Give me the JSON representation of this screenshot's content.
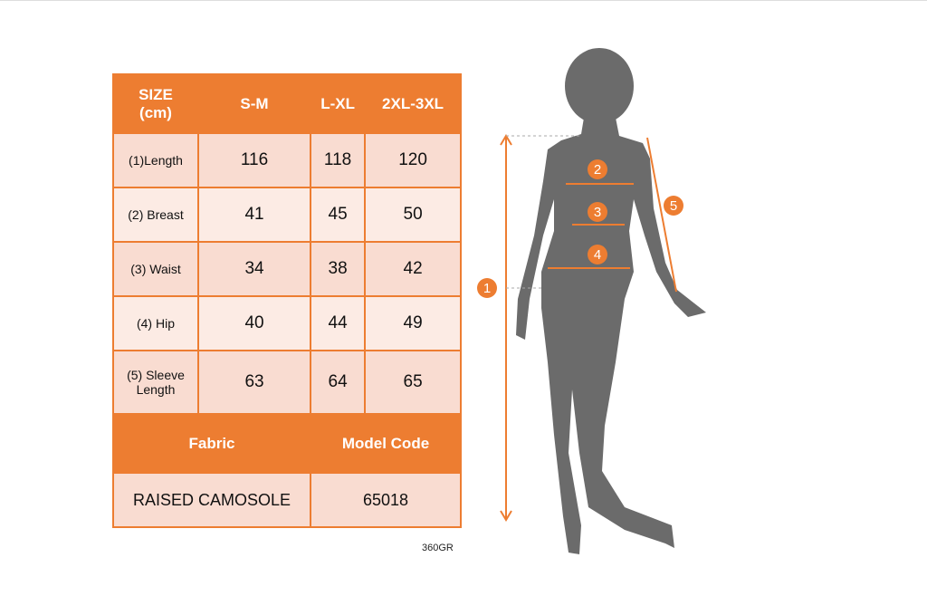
{
  "table": {
    "header": [
      "SIZE\n(cm)",
      "S-M",
      "L-XL",
      "2XL-3XL"
    ],
    "header_size_line1": "SIZE",
    "header_size_line2": "(cm)",
    "rows": [
      {
        "label": "(1)Length",
        "values": [
          "116",
          "118",
          "120"
        ]
      },
      {
        "label": "(2) Breast",
        "values": [
          "41",
          "45",
          "50"
        ]
      },
      {
        "label": "(3) Waist",
        "values": [
          "34",
          "38",
          "42"
        ]
      },
      {
        "label": "(4) Hip",
        "values": [
          "40",
          "44",
          "49"
        ]
      },
      {
        "label": "(5) Sleeve Length",
        "values": [
          "63",
          "64",
          "65"
        ]
      }
    ],
    "fabric_header": "Fabric",
    "model_code_header": "Model Code",
    "fabric": "RAISED CAMOSOLE",
    "model_code": "65018"
  },
  "footer_code": "360GR",
  "markers": [
    "1",
    "2",
    "3",
    "4",
    "5"
  ],
  "colors": {
    "accent": "#ED7D31",
    "silhouette": "#6B6B6B"
  }
}
